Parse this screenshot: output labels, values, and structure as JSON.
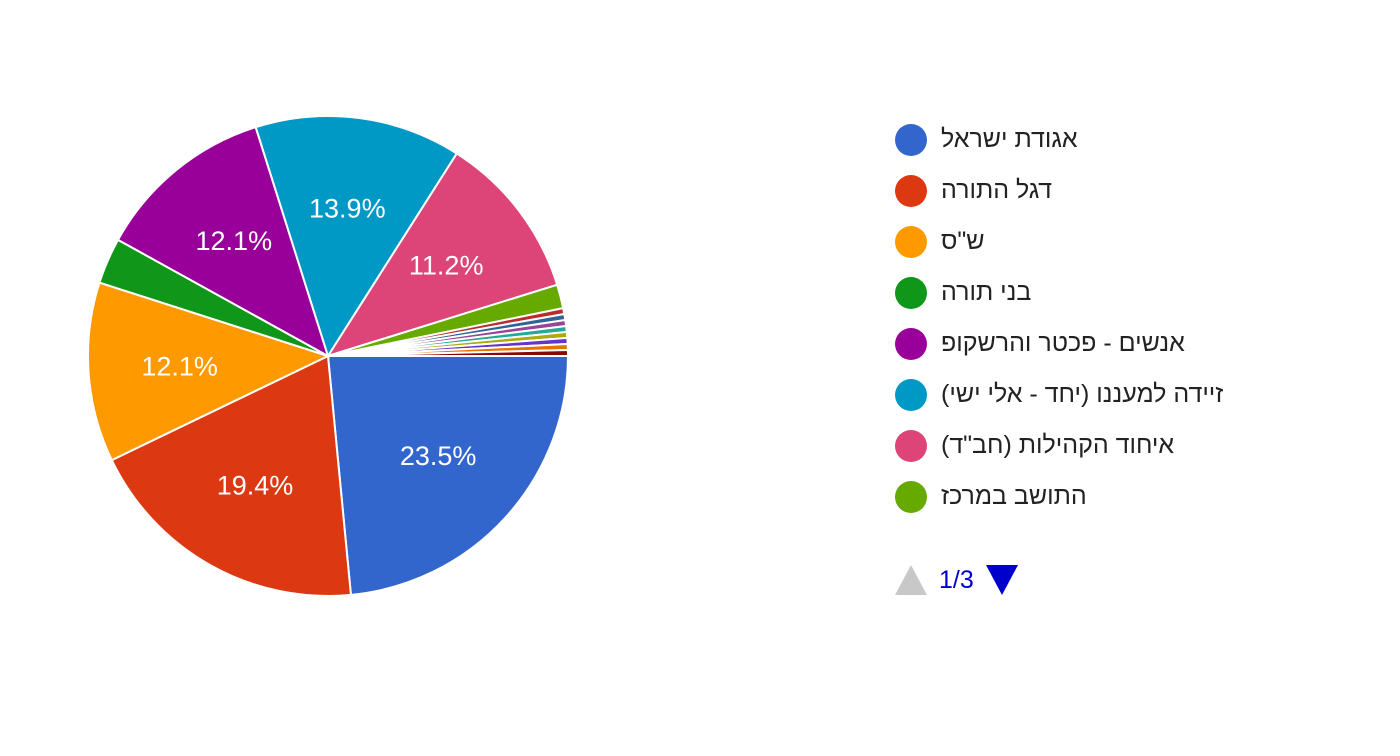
{
  "chart_data": {
    "type": "pie",
    "slices": [
      {
        "label": "אגודת ישראל",
        "value": 23.5,
        "display": "23.5%",
        "color": "#3366cc"
      },
      {
        "label": "דגל התורה",
        "value": 19.4,
        "display": "19.4%",
        "color": "#dc3912"
      },
      {
        "label": "ש\"ס",
        "value": 12.1,
        "display": "12.1%",
        "color": "#ff9900"
      },
      {
        "label": "בני תורה",
        "value": 3.1,
        "display": "",
        "color": "#109618"
      },
      {
        "label": "אנשים - פכטר והרשקופ",
        "value": 12.1,
        "display": "12.1%",
        "color": "#990099"
      },
      {
        "label": "זיידה למעננו (יחד - אלי ישי)",
        "value": 13.9,
        "display": "13.9%",
        "color": "#0099c6"
      },
      {
        "label": "איחוד הקהילות (חב\"ד)",
        "value": 11.2,
        "display": "11.2%",
        "color": "#dd4477"
      },
      {
        "label": "התושב במרכז",
        "value": 1.6,
        "display": "",
        "color": "#66aa00"
      },
      {
        "label": "",
        "value": 0.4,
        "display": "",
        "color": "#b82e2e"
      },
      {
        "label": "",
        "value": 0.4,
        "display": "",
        "color": "#316395"
      },
      {
        "label": "",
        "value": 0.4,
        "display": "",
        "color": "#994499"
      },
      {
        "label": "",
        "value": 0.4,
        "display": "",
        "color": "#22aa99"
      },
      {
        "label": "",
        "value": 0.4,
        "display": "",
        "color": "#aaaa11"
      },
      {
        "label": "",
        "value": 0.4,
        "display": "",
        "color": "#6633cc"
      },
      {
        "label": "",
        "value": 0.4,
        "display": "",
        "color": "#e67300"
      },
      {
        "label": "",
        "value": 0.4,
        "display": "",
        "color": "#8b0707"
      }
    ],
    "legend_position": "right"
  },
  "legend": {
    "items": [
      {
        "label": "אגודת ישראל",
        "color": "#3366cc"
      },
      {
        "label": "דגל התורה",
        "color": "#dc3912"
      },
      {
        "label": "ש\"ס",
        "color": "#ff9900"
      },
      {
        "label": "בני תורה",
        "color": "#109618"
      },
      {
        "label": "אנשים - פכטר והרשקופ",
        "color": "#990099"
      },
      {
        "label": "זיידה למעננו (יחד - אלי ישי)",
        "color": "#0099c6"
      },
      {
        "label": "איחוד הקהילות (חב\"ד)",
        "color": "#dd4477"
      },
      {
        "label": "התושב במרכז",
        "color": "#66aa00"
      }
    ]
  },
  "pager": {
    "text": "1/3",
    "prev_icon": "triangle-up-icon",
    "next_icon": "triangle-down-icon"
  }
}
